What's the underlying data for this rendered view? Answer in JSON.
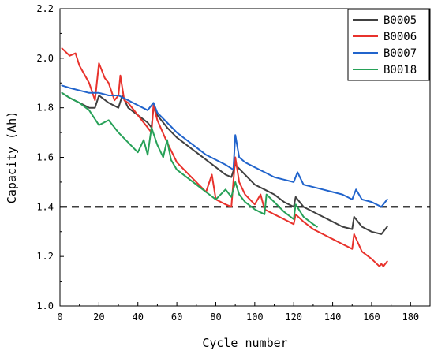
{
  "chart_data": {
    "type": "line",
    "xlabel": "Cycle number",
    "ylabel": "Capacity (Ah)",
    "xlim": [
      0,
      190
    ],
    "ylim": [
      1.0,
      2.2
    ],
    "xticks": [
      0,
      20,
      40,
      60,
      80,
      100,
      120,
      140,
      160,
      180
    ],
    "yticks": [
      1.0,
      1.2,
      1.4,
      1.6,
      1.8,
      2.0,
      2.2
    ],
    "grid": false,
    "legend_position": "top-right",
    "reference_line": {
      "y": 1.4,
      "style": "dashed",
      "color": "#000000"
    },
    "series": [
      {
        "name": "B0005",
        "color": "#404040",
        "x": [
          1,
          5,
          10,
          15,
          18,
          20,
          25,
          30,
          32,
          35,
          40,
          45,
          47,
          48,
          50,
          55,
          60,
          65,
          70,
          75,
          80,
          85,
          88,
          90,
          95,
          100,
          105,
          110,
          115,
          120,
          121,
          125,
          130,
          135,
          140,
          145,
          150,
          151,
          155,
          160,
          165,
          168
        ],
        "y": [
          1.86,
          1.84,
          1.82,
          1.8,
          1.8,
          1.85,
          1.82,
          1.8,
          1.85,
          1.8,
          1.77,
          1.74,
          1.72,
          1.8,
          1.77,
          1.72,
          1.68,
          1.65,
          1.62,
          1.59,
          1.56,
          1.53,
          1.52,
          1.57,
          1.53,
          1.49,
          1.47,
          1.45,
          1.42,
          1.4,
          1.44,
          1.4,
          1.38,
          1.36,
          1.34,
          1.32,
          1.31,
          1.36,
          1.32,
          1.3,
          1.29,
          1.32
        ]
      },
      {
        "name": "B0006",
        "color": "#e8322c",
        "x": [
          1,
          5,
          8,
          10,
          15,
          18,
          20,
          23,
          25,
          28,
          30,
          31,
          33,
          35,
          40,
          45,
          47,
          48,
          50,
          55,
          60,
          65,
          70,
          75,
          78,
          80,
          85,
          88,
          90,
          92,
          95,
          100,
          103,
          105,
          110,
          115,
          120,
          121,
          125,
          130,
          135,
          140,
          145,
          150,
          151,
          155,
          160,
          164,
          165,
          166,
          168
        ],
        "y": [
          2.04,
          2.01,
          2.02,
          1.97,
          1.9,
          1.83,
          1.98,
          1.92,
          1.9,
          1.83,
          1.85,
          1.93,
          1.83,
          1.82,
          1.77,
          1.72,
          1.7,
          1.81,
          1.75,
          1.66,
          1.58,
          1.54,
          1.5,
          1.46,
          1.53,
          1.43,
          1.41,
          1.4,
          1.6,
          1.5,
          1.45,
          1.41,
          1.45,
          1.39,
          1.37,
          1.35,
          1.33,
          1.37,
          1.34,
          1.31,
          1.29,
          1.27,
          1.25,
          1.23,
          1.29,
          1.22,
          1.19,
          1.16,
          1.17,
          1.16,
          1.18
        ]
      },
      {
        "name": "B0007",
        "color": "#2164cc",
        "x": [
          1,
          5,
          10,
          15,
          20,
          25,
          30,
          35,
          40,
          45,
          48,
          50,
          55,
          60,
          65,
          70,
          75,
          80,
          85,
          89,
          90,
          92,
          95,
          100,
          105,
          110,
          115,
          120,
          122,
          125,
          130,
          135,
          140,
          145,
          150,
          152,
          155,
          160,
          165,
          168
        ],
        "y": [
          1.89,
          1.88,
          1.87,
          1.86,
          1.86,
          1.85,
          1.85,
          1.83,
          1.81,
          1.79,
          1.82,
          1.78,
          1.74,
          1.7,
          1.67,
          1.64,
          1.61,
          1.59,
          1.57,
          1.55,
          1.69,
          1.6,
          1.58,
          1.56,
          1.54,
          1.52,
          1.51,
          1.5,
          1.54,
          1.49,
          1.48,
          1.47,
          1.46,
          1.45,
          1.43,
          1.47,
          1.43,
          1.42,
          1.4,
          1.43
        ]
      },
      {
        "name": "B0018",
        "color": "#27a158",
        "x": [
          1,
          5,
          10,
          15,
          20,
          25,
          30,
          35,
          40,
          43,
          45,
          47,
          50,
          53,
          55,
          57,
          60,
          65,
          70,
          75,
          80,
          85,
          88,
          90,
          92,
          95,
          100,
          105,
          106,
          110,
          115,
          120,
          121,
          125,
          130,
          132
        ],
        "y": [
          1.86,
          1.84,
          1.82,
          1.79,
          1.73,
          1.75,
          1.7,
          1.66,
          1.62,
          1.67,
          1.61,
          1.72,
          1.65,
          1.6,
          1.67,
          1.59,
          1.55,
          1.52,
          1.49,
          1.46,
          1.43,
          1.47,
          1.44,
          1.5,
          1.45,
          1.42,
          1.39,
          1.37,
          1.45,
          1.42,
          1.38,
          1.35,
          1.41,
          1.36,
          1.33,
          1.32
        ]
      }
    ]
  }
}
